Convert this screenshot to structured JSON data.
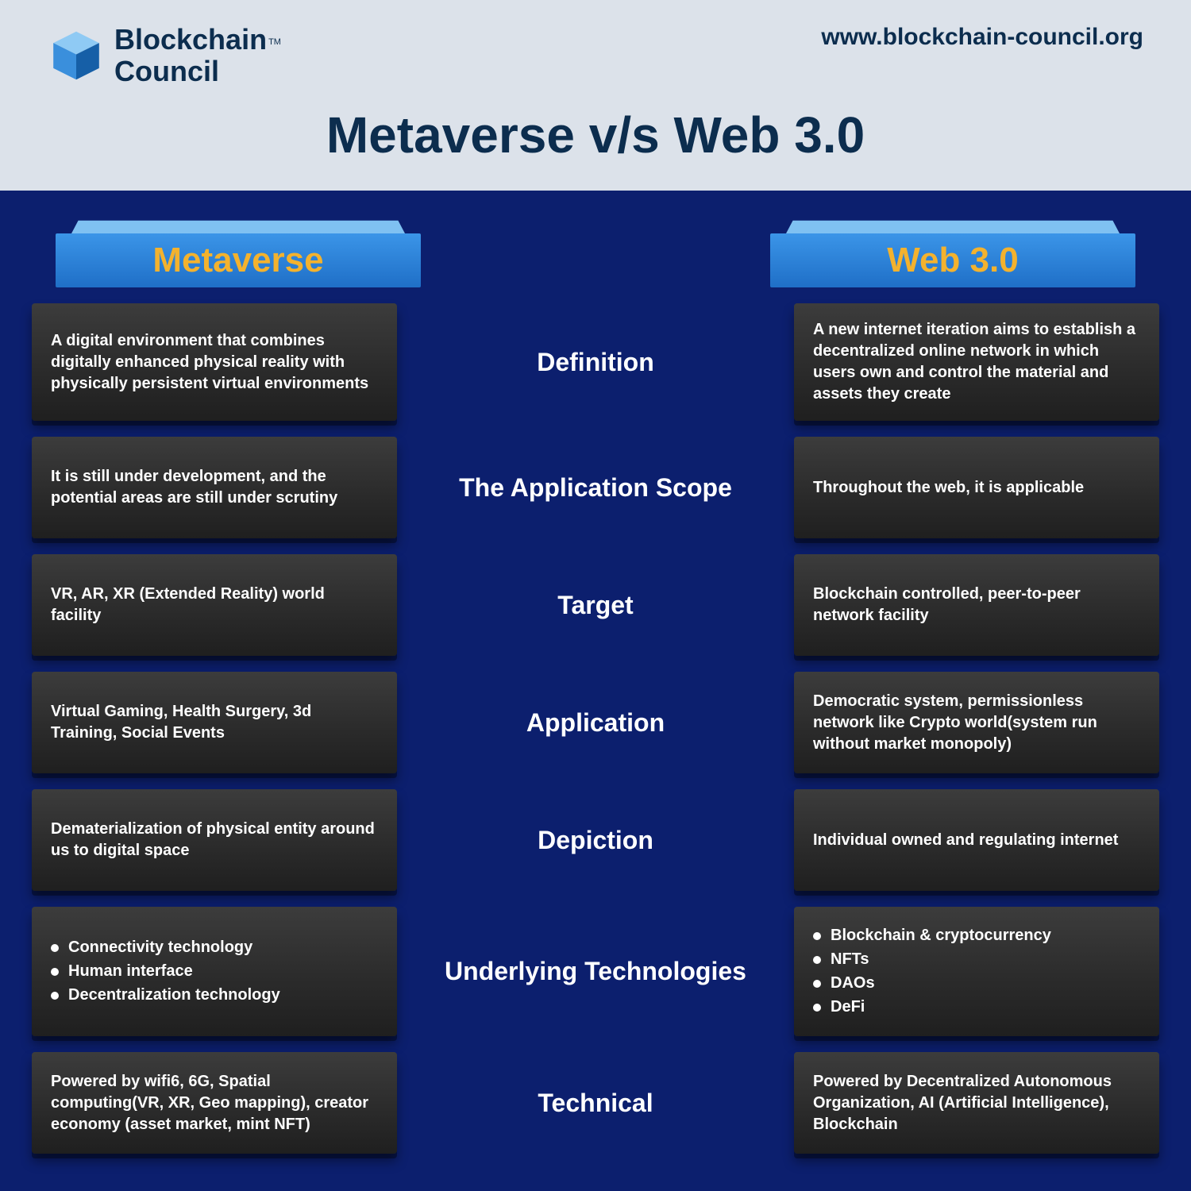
{
  "brand": {
    "name_line1": "Blockchain",
    "name_line2": "Council",
    "tm": "TM",
    "url": "www.blockchain-council.org",
    "main_title": "Metaverse v/s Web 3.0",
    "cube_colors": {
      "top": "#8fcaf4",
      "left": "#3a8fdc",
      "right": "#165fa7"
    }
  },
  "columns": {
    "left_label": "Metaverse",
    "right_label": "Web 3.0",
    "label_color": "#f3b22e"
  },
  "colors": {
    "page_bg": "#dce2ea",
    "body_bg": "#0c1f6e",
    "title_color": "#0c2d4e",
    "card_bg_from": "#3c3c3c",
    "card_bg_to": "#1f1f1f",
    "ribbon_from": "#66b4ff",
    "ribbon_to": "#1a52b0",
    "text_white": "#ffffff"
  },
  "rows": [
    {
      "label": "Definition",
      "left": {
        "type": "text",
        "text": "A digital environment that combines digitally enhanced physical reality with physically persistent virtual environments"
      },
      "right": {
        "type": "text",
        "text": "A new internet iteration aims to establish a decentralized online network in which users own and control the material and assets they create"
      }
    },
    {
      "label": "The Application Scope",
      "left": {
        "type": "text",
        "text": "It is still under development, and the potential areas are still under scrutiny"
      },
      "right": {
        "type": "text",
        "text": "Throughout the web, it is applicable"
      }
    },
    {
      "label": "Target",
      "left": {
        "type": "text",
        "text": "VR, AR, XR (Extended Reality) world facility"
      },
      "right": {
        "type": "text",
        "text": "Blockchain controlled, peer-to-peer network facility"
      }
    },
    {
      "label": "Application",
      "left": {
        "type": "text",
        "text": "Virtual Gaming, Health Surgery, 3d Training, Social Events"
      },
      "right": {
        "type": "text",
        "text": "Democratic system, permissionless network like Crypto world(system run without market monopoly)"
      }
    },
    {
      "label": "Depiction",
      "left": {
        "type": "text",
        "text": "Dematerialization of physical entity around us to digital space"
      },
      "right": {
        "type": "text",
        "text": "Individual owned and regulating internet"
      }
    },
    {
      "label": "Underlying Technologies",
      "left": {
        "type": "list",
        "items": [
          "Connectivity technology",
          "Human interface",
          "Decentralization technology"
        ]
      },
      "right": {
        "type": "list",
        "items": [
          "Blockchain & cryptocurrency",
          "NFTs",
          "DAOs",
          "DeFi"
        ]
      }
    },
    {
      "label": "Technical",
      "left": {
        "type": "text",
        "text": "Powered by wifi6, 6G, Spatial computing(VR, XR, Geo mapping), creator economy (asset market, mint NFT)"
      },
      "right": {
        "type": "text",
        "text": "Powered by Decentralized Autonomous Organization, AI (Artificial Intelligence), Blockchain"
      }
    }
  ]
}
